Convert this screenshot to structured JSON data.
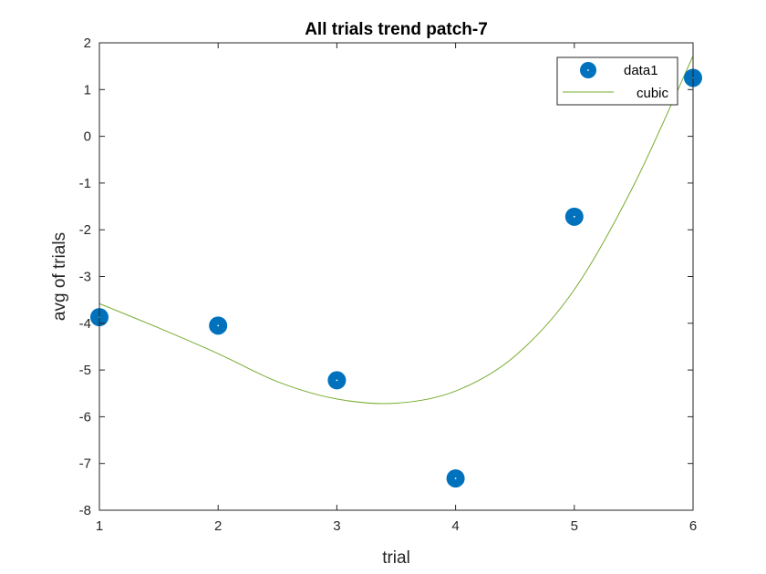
{
  "chart_data": {
    "type": "scatter",
    "title": "All trials trend patch-7",
    "xlabel": "trial",
    "ylabel": "avg of trials",
    "xlim": [
      1,
      6
    ],
    "ylim": [
      -8,
      2
    ],
    "xticks": [
      "1",
      "2",
      "3",
      "4",
      "5",
      "6"
    ],
    "yticks": [
      "2",
      "1",
      "0",
      "-1",
      "-2",
      "-3",
      "-4",
      "-5",
      "-6",
      "-7",
      "-8"
    ],
    "grid": false,
    "legend_position": "top-right",
    "series": [
      {
        "name": "data1",
        "kind": "marker",
        "color": "#0072BD",
        "x": [
          1,
          2,
          3,
          4,
          5,
          6
        ],
        "y": [
          -3.87,
          -4.05,
          -5.22,
          -7.32,
          -1.72,
          1.25
        ]
      },
      {
        "name": "cubic",
        "kind": "line",
        "color": "#77AC30",
        "x": [
          1,
          1.5,
          2,
          2.5,
          3,
          3.5,
          4,
          4.5,
          5,
          5.5,
          6
        ],
        "y": [
          -3.58,
          -4.1,
          -4.65,
          -5.25,
          -5.62,
          -5.71,
          -5.45,
          -4.7,
          -3.28,
          -1.05,
          1.72
        ]
      }
    ]
  }
}
